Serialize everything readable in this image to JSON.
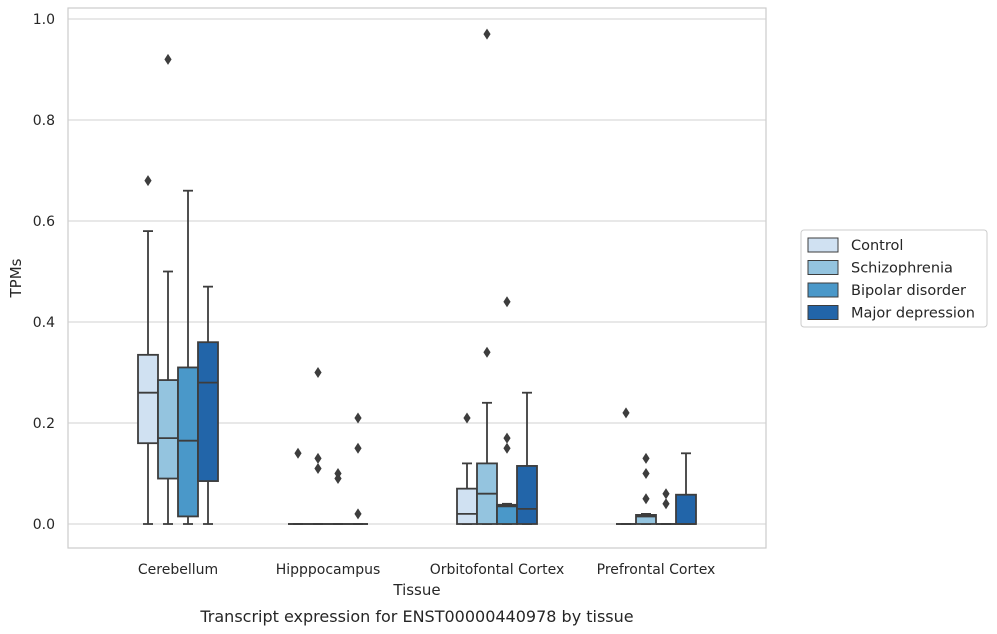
{
  "chart_data": {
    "type": "box",
    "title": "",
    "caption": "Transcript expression for ENST00000440978 by tissue",
    "xlabel": "Tissue",
    "ylabel": "TPMs",
    "ylim": [
      -0.047,
      1.02
    ],
    "yticks": [
      0.0,
      0.2,
      0.4,
      0.6,
      0.8,
      1.0
    ],
    "ytick_labels": [
      "0.0",
      "0.2",
      "0.4",
      "0.6",
      "0.8",
      "1.0"
    ],
    "grid": "horizontal",
    "legend_position": "right",
    "categories": [
      "Cerebellum",
      "Hipppocampus",
      "Orbitofontal Cortex",
      "Prefrontal Cortex"
    ],
    "series": [
      {
        "name": "Control",
        "color": "#d0e1f2",
        "boxes": [
          {
            "q1": 0.16,
            "median": 0.26,
            "q3": 0.335,
            "whisker_low": 0.0,
            "whisker_high": 0.58,
            "outliers": [
              0.68
            ]
          },
          {
            "q1": 0.0,
            "median": 0.0,
            "q3": 0.0,
            "whisker_low": 0.0,
            "whisker_high": 0.0,
            "outliers": [
              0.14
            ]
          },
          {
            "q1": 0.0,
            "median": 0.02,
            "q3": 0.07,
            "whisker_low": 0.0,
            "whisker_high": 0.12,
            "outliers": [
              0.21
            ]
          },
          {
            "q1": 0.0,
            "median": 0.0,
            "q3": 0.0,
            "whisker_low": 0.0,
            "whisker_high": 0.0,
            "outliers": [
              0.22
            ]
          }
        ]
      },
      {
        "name": "Schizophrenia",
        "color": "#94c4df",
        "boxes": [
          {
            "q1": 0.09,
            "median": 0.17,
            "q3": 0.285,
            "whisker_low": 0.0,
            "whisker_high": 0.5,
            "outliers": [
              0.92
            ]
          },
          {
            "q1": 0.0,
            "median": 0.0,
            "q3": 0.0,
            "whisker_low": 0.0,
            "whisker_high": 0.0,
            "outliers": [
              0.3,
              0.13,
              0.11
            ]
          },
          {
            "q1": 0.0,
            "median": 0.06,
            "q3": 0.12,
            "whisker_low": 0.0,
            "whisker_high": 0.24,
            "outliers": [
              0.34,
              0.97
            ]
          },
          {
            "q1": 0.0,
            "median": 0.015,
            "q3": 0.018,
            "whisker_low": 0.0,
            "whisker_high": 0.02,
            "outliers": [
              0.13,
              0.1,
              0.05
            ]
          }
        ]
      },
      {
        "name": "Bipolar disorder",
        "color": "#4a98c9",
        "boxes": [
          {
            "q1": 0.015,
            "median": 0.165,
            "q3": 0.31,
            "whisker_low": 0.0,
            "whisker_high": 0.66,
            "outliers": []
          },
          {
            "q1": 0.0,
            "median": 0.0,
            "q3": 0.0,
            "whisker_low": 0.0,
            "whisker_high": 0.0,
            "outliers": [
              0.1,
              0.09
            ]
          },
          {
            "q1": 0.0,
            "median": 0.035,
            "q3": 0.038,
            "whisker_low": 0.0,
            "whisker_high": 0.04,
            "outliers": [
              0.44,
              0.17,
              0.15
            ]
          },
          {
            "q1": 0.0,
            "median": 0.0,
            "q3": 0.0,
            "whisker_low": 0.0,
            "whisker_high": 0.0,
            "outliers": [
              0.06,
              0.04
            ]
          }
        ]
      },
      {
        "name": "Major depression",
        "color": "#2265a9",
        "boxes": [
          {
            "q1": 0.085,
            "median": 0.28,
            "q3": 0.36,
            "whisker_low": 0.0,
            "whisker_high": 0.47,
            "outliers": []
          },
          {
            "q1": 0.0,
            "median": 0.0,
            "q3": 0.0,
            "whisker_low": 0.0,
            "whisker_high": 0.0,
            "outliers": [
              0.21,
              0.15,
              0.02
            ]
          },
          {
            "q1": 0.0,
            "median": 0.03,
            "q3": 0.115,
            "whisker_low": 0.0,
            "whisker_high": 0.26,
            "outliers": []
          },
          {
            "q1": 0.0,
            "median": 0.0,
            "q3": 0.058,
            "whisker_low": 0.0,
            "whisker_high": 0.14,
            "outliers": []
          }
        ]
      }
    ]
  }
}
